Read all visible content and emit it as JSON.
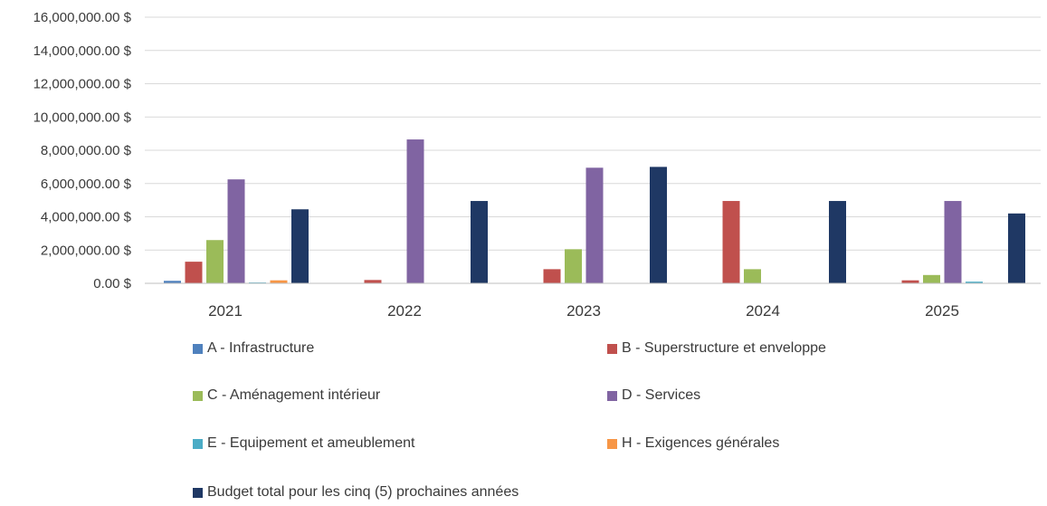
{
  "chart_data": {
    "type": "bar",
    "title": "",
    "xlabel": "",
    "ylabel": "",
    "ylim": [
      0,
      16000000
    ],
    "yticks": [
      0,
      2000000,
      4000000,
      6000000,
      8000000,
      10000000,
      12000000,
      14000000,
      16000000
    ],
    "ytick_labels": [
      "0.00 $",
      "2,000,000.00 $",
      "4,000,000.00 $",
      "6,000,000.00 $",
      "8,000,000.00 $",
      "10,000,000.00 $",
      "12,000,000.00 $",
      "14,000,000.00 $",
      "16,000,000.00 $"
    ],
    "grid": true,
    "legend_position": "bottom",
    "categories": [
      "2021",
      "2022",
      "2023",
      "2024",
      "2025"
    ],
    "series": [
      {
        "name": "A - Infrastructure",
        "color": "#4f81bd",
        "values": [
          150000,
          0,
          0,
          0,
          0
        ]
      },
      {
        "name": "B - Superstructure et enveloppe",
        "color": "#c0504d",
        "values": [
          1300000,
          200000,
          850000,
          4950000,
          180000
        ]
      },
      {
        "name": "C - Aménagement intérieur",
        "color": "#9bbb59",
        "values": [
          2600000,
          0,
          2050000,
          850000,
          500000
        ]
      },
      {
        "name": "D - Services",
        "color": "#8064a2",
        "values": [
          6250000,
          8650000,
          6950000,
          0,
          4950000
        ]
      },
      {
        "name": "E - Equipement et ameublement",
        "color": "#4bacc6",
        "values": [
          50000,
          0,
          0,
          0,
          100000
        ]
      },
      {
        "name": "H - Exigences générales",
        "color": "#f79646",
        "values": [
          180000,
          0,
          0,
          0,
          0
        ]
      },
      {
        "name": "Budget total pour les cinq (5) prochaines années",
        "color": "#1f3864",
        "values": [
          4450000,
          4950000,
          7000000,
          4950000,
          4200000
        ]
      }
    ]
  }
}
